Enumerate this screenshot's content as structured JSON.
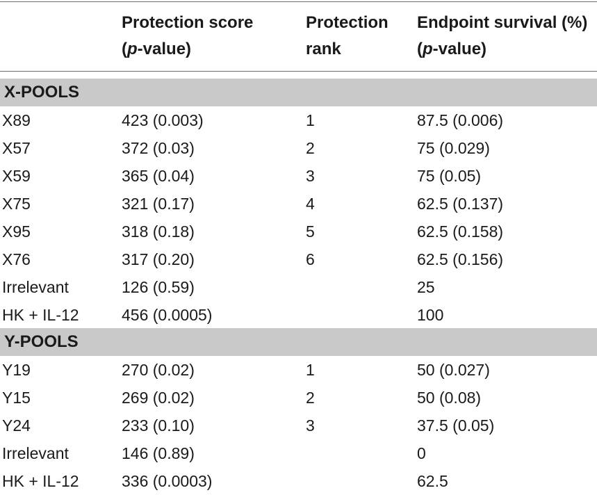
{
  "header": {
    "col2_line1": "Protection score",
    "col2_p": "p",
    "col2_line2_rest": "-value)",
    "col3_line1": "Protection",
    "col3_line2": "rank",
    "col4_line1": "Endpoint survival (%)",
    "col4_p": "p",
    "col4_line2_rest": "-value)"
  },
  "sections": [
    {
      "title": "X-POOLS",
      "rows": [
        [
          "X89",
          "423 (0.003)",
          "1",
          "87.5 (0.006)"
        ],
        [
          "X57",
          "372 (0.03)",
          "2",
          "75 (0.029)"
        ],
        [
          "X59",
          "365 (0.04)",
          "3",
          "75 (0.05)"
        ],
        [
          "X75",
          "321 (0.17)",
          "4",
          "62.5 (0.137)"
        ],
        [
          "X95",
          "318 (0.18)",
          "5",
          "62.5 (0.158)"
        ],
        [
          "X76",
          "317 (0.20)",
          "6",
          "62.5 (0.156)"
        ],
        [
          "Irrelevant",
          "126 (0.59)",
          "",
          "25"
        ],
        [
          "HK + IL-12",
          "456 (0.0005)",
          "",
          "100"
        ]
      ]
    },
    {
      "title": "Y-POOLS",
      "rows": [
        [
          "Y19",
          "270 (0.02)",
          "1",
          "50 (0.027)"
        ],
        [
          "Y15",
          "269 (0.02)",
          "2",
          "50 (0.08)"
        ],
        [
          "Y24",
          "233 (0.10)",
          "3",
          "37.5 (0.05)"
        ],
        [
          "Irrelevant",
          "146 (0.89)",
          "",
          "0"
        ],
        [
          "HK + IL-12",
          "336 (0.0003)",
          "",
          "62.5"
        ]
      ]
    }
  ]
}
